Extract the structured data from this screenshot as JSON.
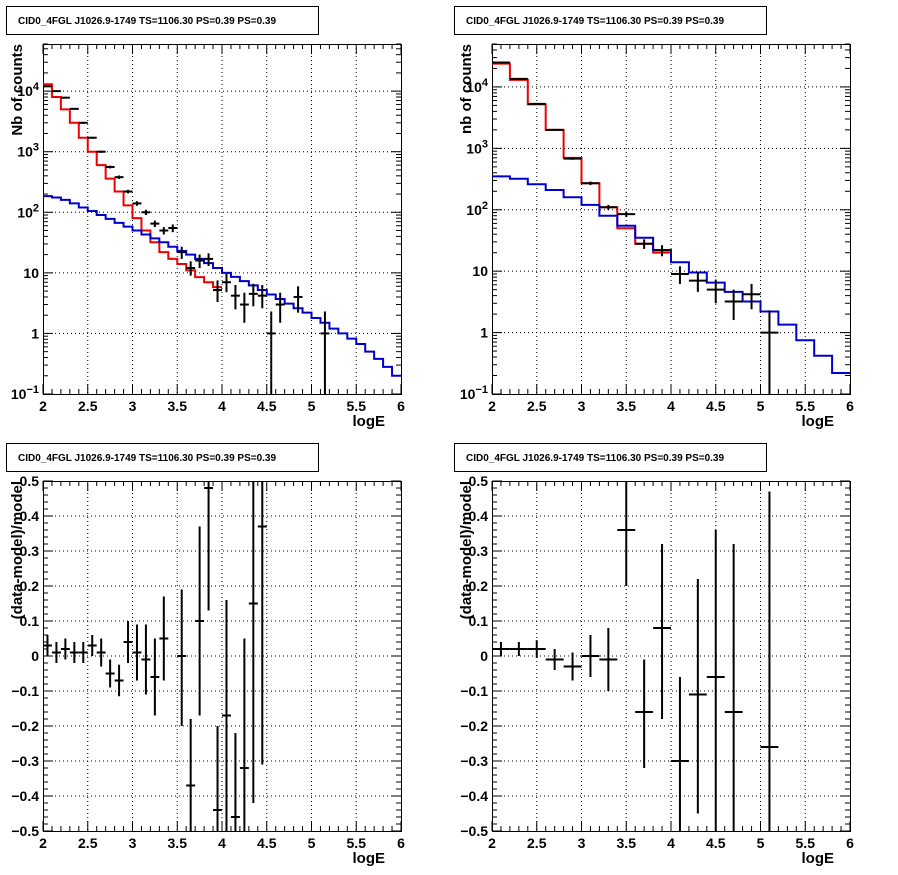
{
  "chart_data": [
    {
      "type": "line",
      "title": "CID0_4FGL J1026.9-1749 TS=1106.30 PS=0.39 PS=0.39",
      "xlabel": "logE",
      "ylabel": "Nb of counts",
      "xlim": [
        2,
        6
      ],
      "ylim": [
        0.1,
        60000
      ],
      "yscale": "log",
      "grid": true,
      "xticks": [
        "2",
        "2.5",
        "3",
        "3.5",
        "4",
        "4.5",
        "5",
        "5.5",
        "6"
      ],
      "yticks": [
        {
          "value": 0.1,
          "base": "10",
          "exp": "−1"
        },
        {
          "value": 1,
          "label": "1"
        },
        {
          "value": 10,
          "label": "10"
        },
        {
          "value": 100,
          "base": "10",
          "exp": "2"
        },
        {
          "value": 1000,
          "base": "10",
          "exp": "3"
        },
        {
          "value": 10000,
          "base": "10",
          "exp": "4"
        }
      ],
      "bin_edges": [
        2.0,
        2.1,
        2.2,
        2.3,
        2.4,
        2.5,
        2.6,
        2.7,
        2.8,
        2.9,
        3.0,
        3.1,
        3.2,
        3.3,
        3.4,
        3.5,
        3.6,
        3.7,
        3.8,
        3.9,
        4.0,
        4.1,
        4.2,
        4.3,
        4.4,
        4.5,
        4.6,
        4.7,
        4.8,
        4.9,
        5.0,
        5.1,
        5.2,
        5.3,
        5.4,
        5.5,
        5.6,
        5.7,
        5.8,
        5.9,
        6.0
      ],
      "series": [
        {
          "kind": "step",
          "color": "#ee0000",
          "values": [
            13000,
            8000,
            5000,
            3000,
            1700,
            1000,
            600,
            360,
            220,
            130,
            80,
            50,
            32,
            22,
            17,
            14,
            11,
            8.5,
            7,
            5.8
          ]
        },
        {
          "kind": "step",
          "color": "#0000cc",
          "values": [
            185,
            175,
            160,
            140,
            120,
            105,
            90,
            78,
            67,
            58,
            50,
            43,
            37,
            32,
            27,
            23,
            20,
            17,
            14.5,
            12,
            10,
            8.6,
            7.3,
            6.2,
            5.2,
            4.4,
            3.7,
            3.1,
            2.6,
            2.2,
            1.8,
            1.5,
            1.2,
            1.0,
            0.82,
            0.67,
            0.5,
            0.38,
            0.28,
            0.2
          ]
        },
        {
          "kind": "points",
          "color": "#000000",
          "xerr": 0.05,
          "points": [
            {
              "x": 2.05,
              "y": 12000,
              "lo": 11800,
              "hi": 12200
            },
            {
              "x": 2.15,
              "y": 10000,
              "lo": 9800,
              "hi": 10200
            },
            {
              "x": 2.25,
              "y": 7800,
              "lo": 7600,
              "hi": 8000
            },
            {
              "x": 2.35,
              "y": 5100,
              "lo": 4950,
              "hi": 5250
            },
            {
              "x": 2.45,
              "y": 3000,
              "lo": 2900,
              "hi": 3100
            },
            {
              "x": 2.55,
              "y": 1700,
              "lo": 1640,
              "hi": 1760
            },
            {
              "x": 2.65,
              "y": 1000,
              "lo": 960,
              "hi": 1040
            },
            {
              "x": 2.75,
              "y": 560,
              "lo": 530,
              "hi": 590
            },
            {
              "x": 2.85,
              "y": 380,
              "lo": 355,
              "hi": 405
            },
            {
              "x": 2.95,
              "y": 220,
              "lo": 205,
              "hi": 235
            },
            {
              "x": 3.05,
              "y": 140,
              "lo": 128,
              "hi": 152
            },
            {
              "x": 3.15,
              "y": 100,
              "lo": 90,
              "hi": 110
            },
            {
              "x": 3.25,
              "y": 65,
              "lo": 57,
              "hi": 73
            },
            {
              "x": 3.35,
              "y": 50,
              "lo": 43,
              "hi": 57
            },
            {
              "x": 3.45,
              "y": 55,
              "lo": 47,
              "hi": 63
            },
            {
              "x": 3.55,
              "y": 22,
              "lo": 17,
              "hi": 27
            },
            {
              "x": 3.65,
              "y": 12,
              "lo": 9,
              "hi": 15.5
            },
            {
              "x": 3.75,
              "y": 16,
              "lo": 12,
              "hi": 20
            },
            {
              "x": 3.85,
              "y": 17,
              "lo": 13,
              "hi": 21
            },
            {
              "x": 3.95,
              "y": 5.2,
              "lo": 3.3,
              "hi": 7.5
            },
            {
              "x": 4.05,
              "y": 7,
              "lo": 4.8,
              "hi": 9.6
            },
            {
              "x": 4.15,
              "y": 4.2,
              "lo": 2.5,
              "hi": 6.3
            },
            {
              "x": 4.25,
              "y": 3,
              "lo": 1.5,
              "hi": 4.7
            },
            {
              "x": 4.35,
              "y": 4.5,
              "lo": 2.8,
              "hi": 6.6
            },
            {
              "x": 4.45,
              "y": 4.2,
              "lo": 2.6,
              "hi": 6.3
            },
            {
              "x": 4.55,
              "y": 1.0,
              "lo": 0.1,
              "hi": 2.3
            },
            {
              "x": 4.65,
              "y": 3.0,
              "lo": 1.5,
              "hi": 4.7
            },
            {
              "x": 4.85,
              "y": 4.0,
              "lo": 2.2,
              "hi": 6.0
            },
            {
              "x": 5.15,
              "y": 1.0,
              "lo": 0.1,
              "hi": 2.3
            }
          ]
        }
      ]
    },
    {
      "type": "line",
      "title": "CID0_4FGL J1026.9-1749 TS=1106.30 PS=0.39 PS=0.39",
      "xlabel": "logE",
      "ylabel": "nb of counts",
      "xlim": [
        2,
        6
      ],
      "ylim": [
        0.1,
        50000
      ],
      "yscale": "log",
      "grid": true,
      "xticks": [
        "2",
        "2.5",
        "3",
        "3.5",
        "4",
        "4.5",
        "5",
        "5.5",
        "6"
      ],
      "yticks": [
        {
          "value": 0.1,
          "base": "10",
          "exp": "−1"
        },
        {
          "value": 1,
          "label": "1"
        },
        {
          "value": 10,
          "label": "10"
        },
        {
          "value": 100,
          "base": "10",
          "exp": "2"
        },
        {
          "value": 1000,
          "base": "10",
          "exp": "3"
        },
        {
          "value": 10000,
          "base": "10",
          "exp": "4"
        }
      ],
      "bin_edges": [
        2.0,
        2.2,
        2.4,
        2.6,
        2.8,
        3.0,
        3.2,
        3.4,
        3.6,
        3.8,
        4.0,
        4.2,
        4.4,
        4.6,
        4.8,
        5.0,
        5.2,
        5.4,
        5.6,
        5.8,
        6.0
      ],
      "series": [
        {
          "kind": "step",
          "color": "#ee0000",
          "values": [
            24000,
            13000,
            5200,
            2000,
            700,
            270,
            110,
            50,
            28,
            20
          ]
        },
        {
          "kind": "step",
          "color": "#0000cc",
          "values": [
            350,
            320,
            260,
            210,
            160,
            120,
            80,
            55,
            35,
            22,
            14,
            9.5,
            6.5,
            4.6,
            3.2,
            2.2,
            1.35,
            0.75,
            0.42,
            0.22
          ]
        },
        {
          "kind": "points",
          "color": "#000000",
          "xerr": 0.1,
          "points": [
            {
              "x": 2.1,
              "y": 25000,
              "lo": 24700,
              "hi": 25300
            },
            {
              "x": 2.3,
              "y": 13500,
              "lo": 13300,
              "hi": 13700
            },
            {
              "x": 2.5,
              "y": 5300,
              "lo": 5180,
              "hi": 5420
            },
            {
              "x": 2.7,
              "y": 2000,
              "lo": 1930,
              "hi": 2070
            },
            {
              "x": 2.9,
              "y": 680,
              "lo": 650,
              "hi": 710
            },
            {
              "x": 3.1,
              "y": 270,
              "lo": 252,
              "hi": 288
            },
            {
              "x": 3.3,
              "y": 110,
              "lo": 100,
              "hi": 120
            },
            {
              "x": 3.5,
              "y": 85,
              "lo": 76,
              "hi": 94
            },
            {
              "x": 3.7,
              "y": 28,
              "lo": 23,
              "hi": 33
            },
            {
              "x": 3.9,
              "y": 22,
              "lo": 17.5,
              "hi": 26.5
            },
            {
              "x": 4.1,
              "y": 9,
              "lo": 6.2,
              "hi": 12
            },
            {
              "x": 4.3,
              "y": 7,
              "lo": 4.6,
              "hi": 9.7
            },
            {
              "x": 4.5,
              "y": 5,
              "lo": 3.0,
              "hi": 7.3
            },
            {
              "x": 4.7,
              "y": 3.2,
              "lo": 1.6,
              "hi": 5.0
            },
            {
              "x": 4.9,
              "y": 4.2,
              "lo": 2.4,
              "hi": 6.2
            },
            {
              "x": 5.1,
              "y": 1.0,
              "lo": 0.1,
              "hi": 2.3
            }
          ]
        }
      ]
    },
    {
      "type": "scatter",
      "title": "CID0_4FGL J1026.9-1749 TS=1106.30 PS=0.39 PS=0.39",
      "xlabel": "logE",
      "ylabel": "(data-model)/model",
      "xlim": [
        2,
        6
      ],
      "ylim": [
        -0.5,
        0.5
      ],
      "yscale": "linear",
      "grid": true,
      "xticks": [
        "2",
        "2.5",
        "3",
        "3.5",
        "4",
        "4.5",
        "5",
        "5.5",
        "6"
      ],
      "yticks": [
        {
          "value": -0.5,
          "label": "−0.5"
        },
        {
          "value": -0.4,
          "label": "−0.4"
        },
        {
          "value": -0.3,
          "label": "−0.3"
        },
        {
          "value": -0.2,
          "label": "−0.2"
        },
        {
          "value": -0.1,
          "label": "−0.1"
        },
        {
          "value": 0,
          "label": "0"
        },
        {
          "value": 0.1,
          "label": "0.1"
        },
        {
          "value": 0.2,
          "label": "0.2"
        },
        {
          "value": 0.3,
          "label": "0.3"
        },
        {
          "value": 0.4,
          "label": "0.4"
        },
        {
          "value": 0.5,
          "label": "0.5"
        }
      ],
      "series": [
        {
          "kind": "points",
          "color": "#000000",
          "xerr": 0.05,
          "points": [
            {
              "x": 2.05,
              "y": 0.03,
              "lo": 0.0,
              "hi": 0.06
            },
            {
              "x": 2.15,
              "y": 0.01,
              "lo": -0.02,
              "hi": 0.04
            },
            {
              "x": 2.25,
              "y": 0.02,
              "lo": -0.01,
              "hi": 0.05
            },
            {
              "x": 2.35,
              "y": 0.01,
              "lo": -0.02,
              "hi": 0.04
            },
            {
              "x": 2.45,
              "y": 0.01,
              "lo": -0.02,
              "hi": 0.04
            },
            {
              "x": 2.55,
              "y": 0.03,
              "lo": 0.0,
              "hi": 0.06
            },
            {
              "x": 2.65,
              "y": 0.01,
              "lo": -0.03,
              "hi": 0.05
            },
            {
              "x": 2.75,
              "y": -0.05,
              "lo": -0.09,
              "hi": -0.01
            },
            {
              "x": 2.85,
              "y": -0.07,
              "lo": -0.115,
              "hi": -0.025
            },
            {
              "x": 2.95,
              "y": 0.04,
              "lo": -0.02,
              "hi": 0.1
            },
            {
              "x": 3.05,
              "y": 0.01,
              "lo": -0.07,
              "hi": 0.09
            },
            {
              "x": 3.15,
              "y": -0.01,
              "lo": -0.11,
              "hi": 0.09
            },
            {
              "x": 3.25,
              "y": -0.06,
              "lo": -0.17,
              "hi": 0.05
            },
            {
              "x": 3.35,
              "y": 0.05,
              "lo": -0.07,
              "hi": 0.17
            },
            {
              "x": 3.55,
              "y": 0.0,
              "lo": -0.2,
              "hi": 0.19
            },
            {
              "x": 3.65,
              "y": -0.37,
              "lo": -0.5,
              "hi": -0.18
            },
            {
              "x": 3.75,
              "y": 0.1,
              "lo": -0.17,
              "hi": 0.37
            },
            {
              "x": 3.85,
              "y": 0.48,
              "lo": 0.13,
              "hi": 0.5
            },
            {
              "x": 3.95,
              "y": -0.44,
              "lo": -0.5,
              "hi": -0.2
            },
            {
              "x": 4.05,
              "y": -0.17,
              "lo": -0.5,
              "hi": 0.16
            },
            {
              "x": 4.15,
              "y": -0.46,
              "lo": -0.5,
              "hi": -0.22
            },
            {
              "x": 4.25,
              "y": -0.32,
              "lo": -0.5,
              "hi": 0.05
            },
            {
              "x": 4.35,
              "y": 0.15,
              "lo": -0.42,
              "hi": 0.5
            },
            {
              "x": 4.45,
              "y": 0.37,
              "lo": -0.31,
              "hi": 0.5
            }
          ]
        }
      ]
    },
    {
      "type": "scatter",
      "title": "CID0_4FGL J1026.9-1749 TS=1106.30 PS=0.39 PS=0.39",
      "xlabel": "logE",
      "ylabel": "(data-model)/model",
      "xlim": [
        2,
        6
      ],
      "ylim": [
        -0.5,
        0.5
      ],
      "yscale": "linear",
      "grid": true,
      "xticks": [
        "2",
        "2.5",
        "3",
        "3.5",
        "4",
        "4.5",
        "5",
        "5.5",
        "6"
      ],
      "yticks": [
        {
          "value": -0.5,
          "label": "−0.5"
        },
        {
          "value": -0.4,
          "label": "−0.4"
        },
        {
          "value": -0.3,
          "label": "−0.3"
        },
        {
          "value": -0.2,
          "label": "−0.2"
        },
        {
          "value": -0.1,
          "label": "−0.1"
        },
        {
          "value": 0,
          "label": "0"
        },
        {
          "value": 0.1,
          "label": "0.1"
        },
        {
          "value": 0.2,
          "label": "0.2"
        },
        {
          "value": 0.3,
          "label": "0.3"
        },
        {
          "value": 0.4,
          "label": "0.4"
        },
        {
          "value": 0.5,
          "label": "0.5"
        }
      ],
      "series": [
        {
          "kind": "points",
          "color": "#000000",
          "xerr": 0.1,
          "points": [
            {
              "x": 2.1,
              "y": 0.02,
              "lo": 0.0,
              "hi": 0.04
            },
            {
              "x": 2.3,
              "y": 0.02,
              "lo": 0.0,
              "hi": 0.04
            },
            {
              "x": 2.5,
              "y": 0.02,
              "lo": -0.005,
              "hi": 0.045
            },
            {
              "x": 2.7,
              "y": -0.01,
              "lo": -0.04,
              "hi": 0.02
            },
            {
              "x": 2.9,
              "y": -0.03,
              "lo": -0.07,
              "hi": 0.01
            },
            {
              "x": 3.1,
              "y": 0.0,
              "lo": -0.06,
              "hi": 0.06
            },
            {
              "x": 3.3,
              "y": -0.01,
              "lo": -0.1,
              "hi": 0.08
            },
            {
              "x": 3.5,
              "y": 0.36,
              "lo": 0.2,
              "hi": 0.5
            },
            {
              "x": 3.7,
              "y": -0.16,
              "lo": -0.32,
              "hi": -0.01
            },
            {
              "x": 3.9,
              "y": 0.08,
              "lo": -0.18,
              "hi": 0.32
            },
            {
              "x": 4.1,
              "y": -0.3,
              "lo": -0.5,
              "hi": -0.06
            },
            {
              "x": 4.3,
              "y": -0.11,
              "lo": -0.45,
              "hi": 0.22
            },
            {
              "x": 4.5,
              "y": -0.06,
              "lo": -0.5,
              "hi": 0.36
            },
            {
              "x": 4.7,
              "y": -0.16,
              "lo": -0.5,
              "hi": 0.32
            },
            {
              "x": 5.1,
              "y": -0.26,
              "lo": -0.5,
              "hi": 0.47
            }
          ]
        }
      ]
    }
  ]
}
